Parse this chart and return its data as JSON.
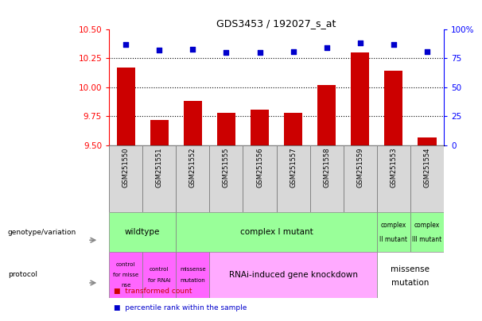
{
  "title": "GDS3453 / 192027_s_at",
  "samples": [
    "GSM251550",
    "GSM251551",
    "GSM251552",
    "GSM251555",
    "GSM251556",
    "GSM251557",
    "GSM251558",
    "GSM251559",
    "GSM251553",
    "GSM251554"
  ],
  "bar_values": [
    10.17,
    9.72,
    9.88,
    9.78,
    9.81,
    9.78,
    10.02,
    10.3,
    10.14,
    9.57
  ],
  "dot_values": [
    87,
    82,
    83,
    80,
    80,
    81,
    84,
    88,
    87,
    81
  ],
  "bar_color": "#cc0000",
  "dot_color": "#0000cc",
  "ylim_left": [
    9.5,
    10.5
  ],
  "ylim_right": [
    0,
    100
  ],
  "yticks_left": [
    9.5,
    9.75,
    10.0,
    10.25,
    10.5
  ],
  "yticks_right": [
    0,
    25,
    50,
    75,
    100
  ],
  "grid_values": [
    9.75,
    10.0,
    10.25
  ],
  "bar_bottom": 9.5,
  "green_color": "#99ff99",
  "pink_dark": "#ff66ff",
  "pink_light": "#ffaaff",
  "white": "#ffffff",
  "gray_bg": "#d0d0d0"
}
